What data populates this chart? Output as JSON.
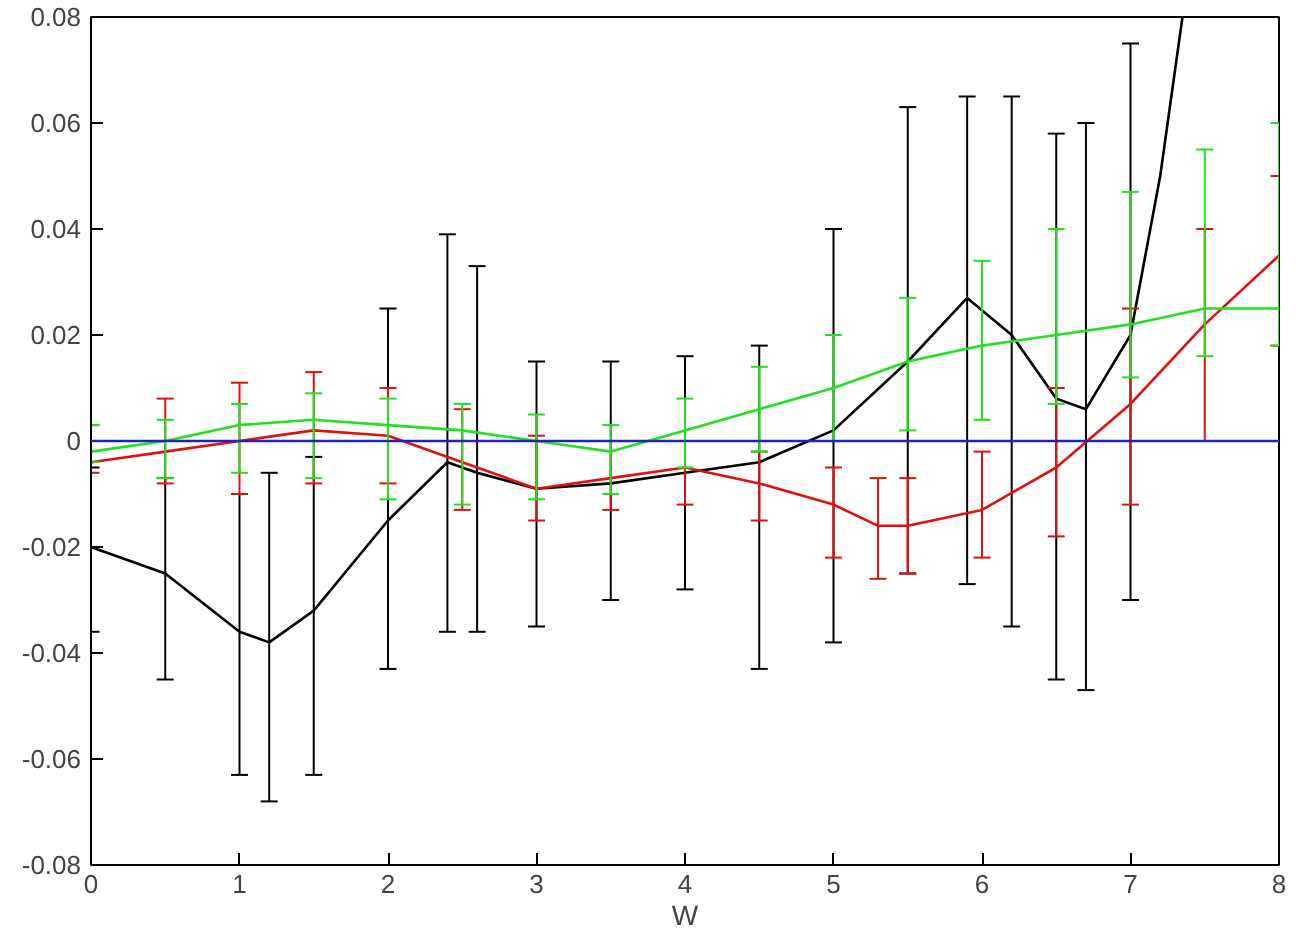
{
  "chart_data": {
    "type": "line",
    "xlabel": "W",
    "xlim": [
      0,
      8
    ],
    "ylim": [
      -0.08,
      0.08
    ],
    "xticks": [
      0,
      1,
      2,
      3,
      4,
      5,
      6,
      7,
      8
    ],
    "yticks": [
      -0.08,
      -0.06,
      -0.04,
      -0.02,
      0,
      0.02,
      0.04,
      0.06,
      0.08
    ],
    "grid": false,
    "ref_lines": [
      {
        "axis": "y",
        "value": 0,
        "color": "#2020c0"
      }
    ],
    "series": [
      {
        "color": "#000000",
        "x": [
          0,
          0.5,
          1,
          1.2,
          1.5,
          2,
          2.4,
          2.6,
          3,
          3.5,
          4,
          4.5,
          5,
          5.5,
          5.9,
          6.2,
          6.5,
          6.7,
          7,
          7.2,
          7.35
        ],
        "values": [
          -0.02,
          -0.025,
          -0.036,
          -0.038,
          -0.032,
          -0.015,
          -0.004,
          -0.006,
          -0.009,
          -0.008,
          -0.006,
          -0.004,
          0.002,
          0.015,
          0.027,
          0.02,
          0.008,
          0.006,
          0.02,
          0.05,
          0.08
        ],
        "errors": [
          [
            -0.036,
            -0.005
          ],
          [
            -0.045,
            -0.007
          ],
          [
            -0.063,
            -0.01
          ],
          [
            -0.068,
            -0.006
          ],
          [
            -0.063,
            -0.003
          ],
          [
            -0.043,
            0.025
          ],
          [
            -0.036,
            0.039
          ],
          [
            -0.036,
            0.033
          ],
          [
            -0.035,
            0.015
          ],
          [
            -0.03,
            0.015
          ],
          [
            -0.028,
            0.016
          ],
          [
            -0.043,
            0.018
          ],
          [
            -0.038,
            0.04
          ],
          [
            -0.025,
            0.063
          ],
          [
            -0.027,
            0.065
          ],
          [
            -0.035,
            0.065
          ],
          [
            -0.045,
            0.058
          ],
          [
            -0.047,
            0.06
          ],
          [
            -0.03,
            0.075
          ],
          null,
          null
        ]
      },
      {
        "color": "#e01010",
        "x": [
          0,
          0.5,
          1,
          1.5,
          2,
          2.5,
          3,
          3.5,
          4,
          4.5,
          5,
          5.3,
          5.5,
          6,
          6.5,
          7,
          7.5,
          8
        ],
        "values": [
          -0.004,
          -0.002,
          0.0,
          0.002,
          0.001,
          -0.004,
          -0.009,
          -0.007,
          -0.005,
          -0.008,
          -0.012,
          -0.016,
          -0.016,
          -0.013,
          -0.005,
          0.007,
          0.022,
          0.035
        ],
        "errors": [
          [
            -0.006,
            0.003
          ],
          [
            -0.008,
            0.008
          ],
          [
            -0.01,
            0.011
          ],
          [
            -0.008,
            0.013
          ],
          [
            -0.008,
            0.01
          ],
          [
            -0.013,
            0.006
          ],
          [
            -0.015,
            0.001
          ],
          [
            -0.013,
            0.0
          ],
          [
            -0.012,
            0.0
          ],
          [
            -0.015,
            -0.002
          ],
          [
            -0.022,
            -0.005
          ],
          [
            -0.026,
            -0.007
          ],
          [
            -0.025,
            -0.007
          ],
          [
            -0.022,
            -0.002
          ],
          [
            -0.018,
            0.01
          ],
          [
            -0.012,
            0.025
          ],
          [
            0.0,
            0.04
          ],
          [
            0.018,
            0.05
          ]
        ]
      },
      {
        "color": "#20e020",
        "x": [
          0,
          0.5,
          1,
          1.5,
          2,
          2.5,
          3,
          3.5,
          4,
          4.5,
          5,
          5.5,
          6,
          6.5,
          7,
          7.5,
          8
        ],
        "values": [
          -0.002,
          0.0,
          0.003,
          0.004,
          0.003,
          0.002,
          0.0,
          -0.002,
          0.002,
          0.006,
          0.01,
          0.015,
          0.018,
          0.02,
          0.022,
          0.025,
          0.025
        ],
        "errors": [
          [
            -0.004,
            0.003
          ],
          [
            -0.007,
            0.004
          ],
          [
            -0.006,
            0.007
          ],
          [
            -0.007,
            0.009
          ],
          [
            -0.011,
            0.008
          ],
          [
            -0.012,
            0.007
          ],
          [
            -0.011,
            0.005
          ],
          [
            -0.01,
            0.003
          ],
          [
            -0.005,
            0.008
          ],
          [
            -0.002,
            0.014
          ],
          [
            0.0,
            0.02
          ],
          [
            0.002,
            0.027
          ],
          [
            0.004,
            0.034
          ],
          [
            0.007,
            0.04
          ],
          [
            0.012,
            0.047
          ],
          [
            0.016,
            0.055
          ],
          [
            0.018,
            0.06
          ]
        ]
      }
    ]
  }
}
